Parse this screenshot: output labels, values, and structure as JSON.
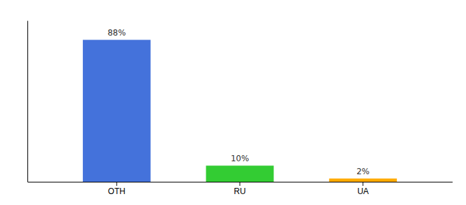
{
  "chart_data": {
    "type": "bar",
    "categories": [
      "OTH",
      "RU",
      "UA"
    ],
    "values": [
      88,
      10,
      2
    ],
    "value_labels": [
      "88%",
      "10%",
      "2%"
    ],
    "colors": [
      "#4472db",
      "#33cc33",
      "#ffaa00"
    ],
    "ylim": [
      0,
      100
    ],
    "grid": false,
    "data_labels": true,
    "tick_labels": "x"
  }
}
